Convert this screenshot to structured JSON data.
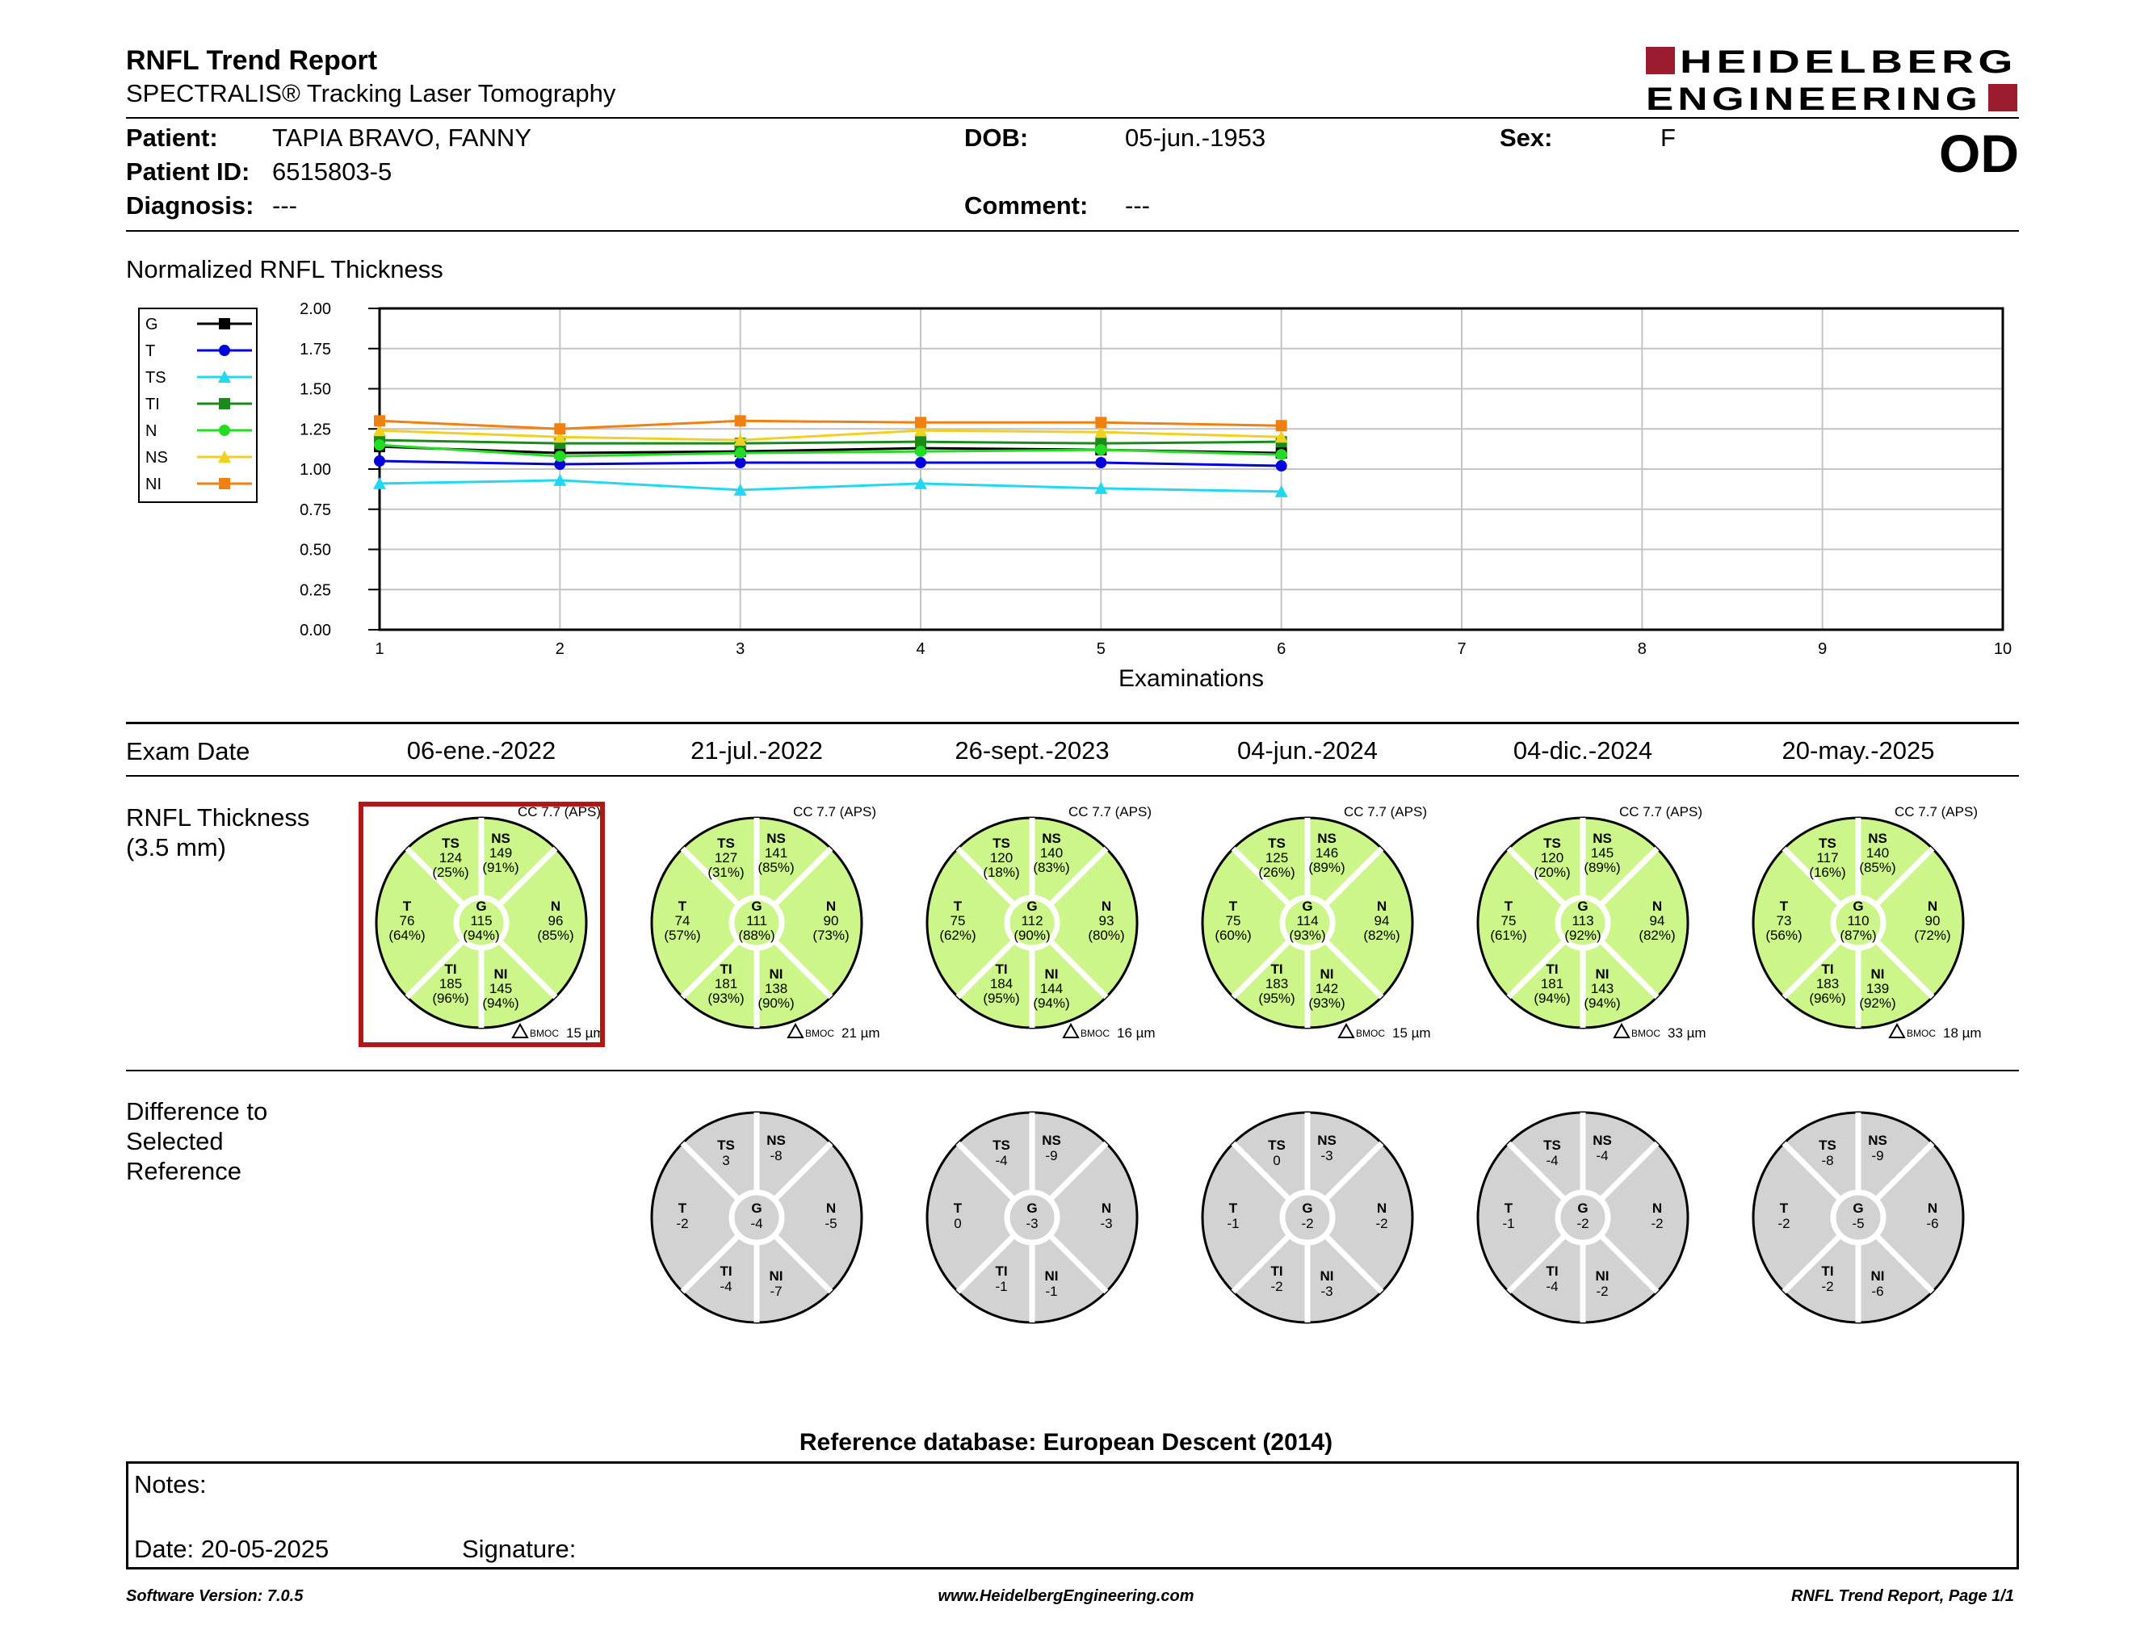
{
  "header": {
    "title": "RNFL Trend Report",
    "subtitle": "SPECTRALIS® Tracking Laser Tomography",
    "logo_line1": "HEIDELBERG",
    "logo_line2": "ENGINEERING",
    "eye": "OD",
    "brand_color": "#9b1c2e"
  },
  "patient": {
    "name_label": "Patient:",
    "name": "TAPIA BRAVO, FANNY",
    "id_label": "Patient ID:",
    "id": "6515803-5",
    "diagnosis_label": "Diagnosis:",
    "diagnosis": "---",
    "dob_label": "DOB:",
    "dob": "05-jun.-1953",
    "comment_label": "Comment:",
    "comment": "---",
    "sex_label": "Sex:",
    "sex": "F"
  },
  "chart_section_title": "Normalized RNFL Thickness",
  "chart_data": {
    "type": "line",
    "title": "",
    "xlabel": "Examinations",
    "ylabel": "",
    "x": [
      1,
      2,
      3,
      4,
      5,
      6
    ],
    "xticks": [
      1,
      2,
      3,
      4,
      5,
      6,
      7,
      8,
      9,
      10
    ],
    "yticks": [
      "0.00",
      "0.25",
      "0.50",
      "0.75",
      "1.00",
      "1.25",
      "1.50",
      "1.75",
      "2.00"
    ],
    "xlim": [
      1,
      10
    ],
    "ylim": [
      0,
      2
    ],
    "grid": true,
    "legend_position": "left",
    "series": [
      {
        "name": "G",
        "color": "#000000",
        "marker": "square",
        "values": [
          1.14,
          1.1,
          1.11,
          1.13,
          1.12,
          1.1
        ]
      },
      {
        "name": "T",
        "color": "#0000dd",
        "marker": "circle",
        "values": [
          1.05,
          1.03,
          1.04,
          1.04,
          1.04,
          1.02
        ]
      },
      {
        "name": "TS",
        "color": "#22d8f0",
        "marker": "triangle",
        "values": [
          0.91,
          0.93,
          0.87,
          0.91,
          0.88,
          0.86
        ]
      },
      {
        "name": "TI",
        "color": "#1a8a1a",
        "marker": "square",
        "values": [
          1.18,
          1.16,
          1.16,
          1.17,
          1.16,
          1.17
        ]
      },
      {
        "name": "N",
        "color": "#22dd22",
        "marker": "circle",
        "values": [
          1.15,
          1.08,
          1.1,
          1.11,
          1.12,
          1.09
        ]
      },
      {
        "name": "NS",
        "color": "#f0d020",
        "marker": "triangle",
        "values": [
          1.24,
          1.2,
          1.18,
          1.24,
          1.23,
          1.2
        ]
      },
      {
        "name": "NI",
        "color": "#f08010",
        "marker": "square",
        "values": [
          1.3,
          1.25,
          1.3,
          1.29,
          1.29,
          1.27
        ]
      }
    ]
  },
  "exam_date_label": "Exam Date",
  "rnfl_label_line1": "RNFL Thickness",
  "rnfl_label_line2": "(3.5 mm)",
  "diff_label_line1": "Difference to",
  "diff_label_line2": "Selected",
  "diff_label_line3": "Reference",
  "exams": [
    {
      "date": "06-ene.-2022",
      "cc": "CC 7.7 (APS)",
      "bmoc": "15 µm",
      "selected": true,
      "sectors": {
        "TS": {
          "v": "124",
          "p": "(25%)"
        },
        "NS": {
          "v": "149",
          "p": "(91%)"
        },
        "T": {
          "v": "76",
          "p": "(64%)"
        },
        "G": {
          "v": "115",
          "p": "(94%)"
        },
        "N": {
          "v": "96",
          "p": "(85%)"
        },
        "TI": {
          "v": "185",
          "p": "(96%)"
        },
        "NI": {
          "v": "145",
          "p": "(94%)"
        }
      },
      "diff": null
    },
    {
      "date": "21-jul.-2022",
      "cc": "CC 7.7 (APS)",
      "bmoc": "21 µm",
      "selected": false,
      "sectors": {
        "TS": {
          "v": "127",
          "p": "(31%)"
        },
        "NS": {
          "v": "141",
          "p": "(85%)"
        },
        "T": {
          "v": "74",
          "p": "(57%)"
        },
        "G": {
          "v": "111",
          "p": "(88%)"
        },
        "N": {
          "v": "90",
          "p": "(73%)"
        },
        "TI": {
          "v": "181",
          "p": "(93%)"
        },
        "NI": {
          "v": "138",
          "p": "(90%)"
        }
      },
      "diff": {
        "TS": "3",
        "NS": "-8",
        "T": "-2",
        "G": "-4",
        "N": "-5",
        "TI": "-4",
        "NI": "-7"
      }
    },
    {
      "date": "26-sept.-2023",
      "cc": "CC 7.7 (APS)",
      "bmoc": "16 µm",
      "selected": false,
      "sectors": {
        "TS": {
          "v": "120",
          "p": "(18%)"
        },
        "NS": {
          "v": "140",
          "p": "(83%)"
        },
        "T": {
          "v": "75",
          "p": "(62%)"
        },
        "G": {
          "v": "112",
          "p": "(90%)"
        },
        "N": {
          "v": "93",
          "p": "(80%)"
        },
        "TI": {
          "v": "184",
          "p": "(95%)"
        },
        "NI": {
          "v": "144",
          "p": "(94%)"
        }
      },
      "diff": {
        "TS": "-4",
        "NS": "-9",
        "T": "0",
        "G": "-3",
        "N": "-3",
        "TI": "-1",
        "NI": "-1"
      }
    },
    {
      "date": "04-jun.-2024",
      "cc": "CC 7.7 (APS)",
      "bmoc": "15 µm",
      "selected": false,
      "sectors": {
        "TS": {
          "v": "125",
          "p": "(26%)"
        },
        "NS": {
          "v": "146",
          "p": "(89%)"
        },
        "T": {
          "v": "75",
          "p": "(60%)"
        },
        "G": {
          "v": "114",
          "p": "(93%)"
        },
        "N": {
          "v": "94",
          "p": "(82%)"
        },
        "TI": {
          "v": "183",
          "p": "(95%)"
        },
        "NI": {
          "v": "142",
          "p": "(93%)"
        }
      },
      "diff": {
        "TS": "0",
        "NS": "-3",
        "T": "-1",
        "G": "-2",
        "N": "-2",
        "TI": "-2",
        "NI": "-3"
      }
    },
    {
      "date": "04-dic.-2024",
      "cc": "CC 7.7 (APS)",
      "bmoc": "33 µm",
      "selected": false,
      "sectors": {
        "TS": {
          "v": "120",
          "p": "(20%)"
        },
        "NS": {
          "v": "145",
          "p": "(89%)"
        },
        "T": {
          "v": "75",
          "p": "(61%)"
        },
        "G": {
          "v": "113",
          "p": "(92%)"
        },
        "N": {
          "v": "94",
          "p": "(82%)"
        },
        "TI": {
          "v": "181",
          "p": "(94%)"
        },
        "NI": {
          "v": "143",
          "p": "(94%)"
        }
      },
      "diff": {
        "TS": "-4",
        "NS": "-4",
        "T": "-1",
        "G": "-2",
        "N": "-2",
        "TI": "-4",
        "NI": "-2"
      }
    },
    {
      "date": "20-may.-2025",
      "cc": "CC 7.7 (APS)",
      "bmoc": "18 µm",
      "selected": false,
      "sectors": {
        "TS": {
          "v": "117",
          "p": "(16%)"
        },
        "NS": {
          "v": "140",
          "p": "(85%)"
        },
        "T": {
          "v": "73",
          "p": "(56%)"
        },
        "G": {
          "v": "110",
          "p": "(87%)"
        },
        "N": {
          "v": "90",
          "p": "(72%)"
        },
        "TI": {
          "v": "183",
          "p": "(96%)"
        },
        "NI": {
          "v": "139",
          "p": "(92%)"
        }
      },
      "diff": {
        "TS": "-8",
        "NS": "-9",
        "T": "-2",
        "G": "-5",
        "N": "-6",
        "TI": "-2",
        "NI": "-6"
      }
    }
  ],
  "bmoc_label": "BMOC",
  "normal_color": "#ccf58a",
  "diff_color": "#d2d2d2",
  "selected_color": "#b01818",
  "reference_db": "Reference database: European Descent (2014)",
  "notes": {
    "label": "Notes:",
    "date_label": "Date: 20-05-2025",
    "signature_label": "Signature:"
  },
  "footer": {
    "software": "Software Version: 7.0.5",
    "website": "www.HeidelbergEngineering.com",
    "page": "RNFL Trend Report, Page 1/1"
  }
}
